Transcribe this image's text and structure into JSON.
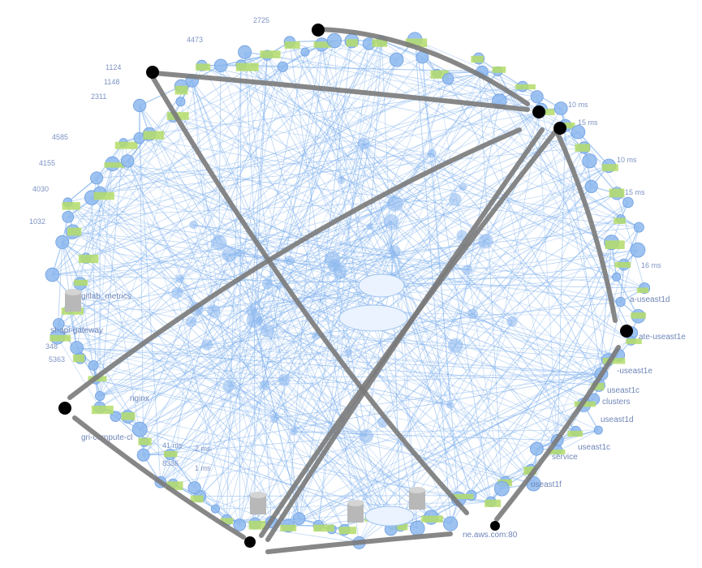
{
  "diagram": {
    "labels": {
      "node_region_1": "a-useast1d",
      "node_region_2": "ate-useast1e",
      "node_region_3": "-useast1e",
      "node_region_4": "useast1c",
      "node_region_5": "useast1d",
      "node_region_6": "useast1c",
      "node_region_7": "useast1f",
      "node_compute": "gri-compute-cl",
      "node_nginx": "nginx",
      "node_gateway": "st-api-gateway",
      "node_metrics": "gitlab_metrics",
      "node_clusters": "clusters",
      "node_service": "service",
      "node_ip_port": "ne.aws.com:80",
      "latency_1": "10 ms",
      "latency_2": "15 ms",
      "latency_3": "41 ms",
      "latency_4": "2 ms",
      "latency_5": "1 ms",
      "latency_6": "10 ms",
      "latency_7": "15 ms",
      "latency_8": "16 ms",
      "node_count_1": "4473",
      "node_count_2": "1148",
      "node_count_3": "2311",
      "node_count_4": "4585",
      "node_count_5": "4155",
      "node_count_6": "4030",
      "node_count_7": "1032",
      "node_count_8": "348",
      "node_count_9": "5363",
      "node_count_10": "2725",
      "node_count_11": "1124",
      "node_count_12": "8336"
    },
    "colors": {
      "edge": "#7eb0ee",
      "node_blue": "#8db8ee",
      "node_green": "#b4dc6a",
      "text": "#6f86b8",
      "marker_line": "#7a7a7a",
      "marker_dot": "#000000",
      "db": "#b8b8b8"
    }
  }
}
